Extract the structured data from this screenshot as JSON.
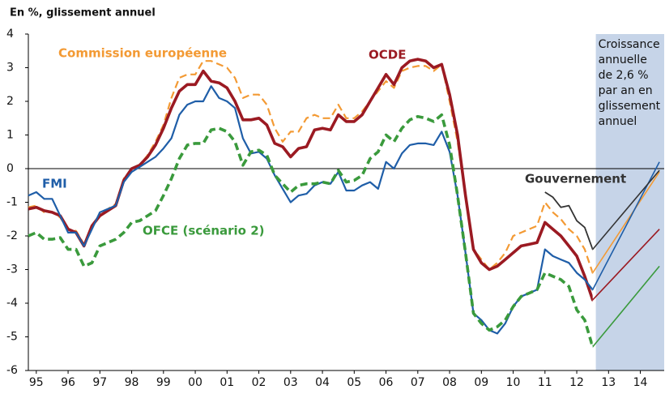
{
  "chart_data": {
    "type": "line",
    "ylabel": "En %, glissement annuel",
    "x": [
      1995.25,
      1995.5,
      1995.75,
      1996,
      1996.25,
      1996.5,
      1996.75,
      1997,
      1997.25,
      1997.5,
      1997.75,
      1998,
      1998.25,
      1998.5,
      1998.75,
      1999,
      1999.25,
      1999.5,
      1999.75,
      2000,
      2000.25,
      2000.5,
      2000.75,
      2001,
      2001.25,
      2001.5,
      2001.75,
      2002,
      2002.25,
      2002.5,
      2002.75,
      2003,
      2003.25,
      2003.5,
      2003.75,
      2004,
      2004.25,
      2004.5,
      2004.75,
      2005,
      2005.25,
      2005.5,
      2005.75,
      2006,
      2006.25,
      2006.5,
      2006.75,
      2007,
      2007.25,
      2007.5,
      2007.75,
      2008,
      2008.25,
      2008.5,
      2008.75,
      2009,
      2009.25,
      2009.5,
      2009.75,
      2010,
      2010.25,
      2010.5,
      2010.75,
      2011,
      2011.25,
      2011.5,
      2011.75,
      2012,
      2012.25,
      2012.5,
      2012.75,
      2013,
      2015.1
    ],
    "xlim": [
      1995.25,
      2015.25
    ],
    "xticks": [
      {
        "value": 1995.5,
        "label": "95"
      },
      {
        "value": 1996.5,
        "label": "96"
      },
      {
        "value": 1997.5,
        "label": "97"
      },
      {
        "value": 1998.5,
        "label": "98"
      },
      {
        "value": 1999.5,
        "label": "99"
      },
      {
        "value": 2000.5,
        "label": "00"
      },
      {
        "value": 2001.5,
        "label": "01"
      },
      {
        "value": 2002.5,
        "label": "02"
      },
      {
        "value": 2003.5,
        "label": "03"
      },
      {
        "value": 2004.5,
        "label": "04"
      },
      {
        "value": 2005.5,
        "label": "05"
      },
      {
        "value": 2006.5,
        "label": "06"
      },
      {
        "value": 2007.5,
        "label": "07"
      },
      {
        "value": 2008.5,
        "label": "08"
      },
      {
        "value": 2009.5,
        "label": "09"
      },
      {
        "value": 2010.5,
        "label": "10"
      },
      {
        "value": 2011.5,
        "label": "11"
      },
      {
        "value": 2012.5,
        "label": "12"
      },
      {
        "value": 2013.5,
        "label": "13"
      },
      {
        "value": 2014.5,
        "label": "14"
      }
    ],
    "ylim": [
      -6,
      4
    ],
    "yticks": [
      -6,
      -5,
      -4,
      -3,
      -2,
      -1,
      0,
      1,
      2,
      3,
      4
    ],
    "projection_band": [
      2013.1,
      2015.25
    ],
    "annotation": [
      "Croissance",
      "annuelle",
      "de 2,6 %",
      "par an en",
      "glissement",
      "annuel"
    ],
    "series": [
      {
        "name": "Commission européenne",
        "color": "#f39a34",
        "dashed": true,
        "width": 2.2,
        "values": [
          -1.15,
          -1.1,
          -1.3,
          -1.3,
          -1.45,
          -1.8,
          -1.85,
          -2.25,
          -1.7,
          -1.35,
          -1.2,
          -1.05,
          -0.3,
          0,
          0.1,
          0.4,
          0.8,
          1.3,
          2.1,
          2.7,
          2.8,
          2.8,
          3.2,
          3.2,
          3.1,
          3.0,
          2.7,
          2.1,
          2.2,
          2.2,
          1.9,
          1.2,
          0.8,
          1.1,
          1.1,
          1.5,
          1.6,
          1.5,
          1.5,
          1.9,
          1.5,
          1.5,
          1.7,
          2.0,
          2.3,
          2.6,
          2.4,
          2.9,
          3.0,
          3.05,
          3.05,
          2.9,
          3.1,
          2.0,
          0.8,
          -0.8,
          -2.4,
          -2.7,
          -3.0,
          -2.8,
          -2.5,
          -2.0,
          -1.9,
          -1.8,
          -1.7,
          -1.0,
          -1.3,
          -1.5,
          -1.8,
          -2.0,
          -2.4,
          -3.1,
          -0.1
        ]
      },
      {
        "name": "OCDE",
        "color": "#9b1a22",
        "dashed": false,
        "width": 3.6,
        "values": [
          -1.2,
          -1.15,
          -1.25,
          -1.3,
          -1.4,
          -1.8,
          -1.9,
          -2.3,
          -1.7,
          -1.4,
          -1.25,
          -1.1,
          -0.35,
          0,
          0.1,
          0.35,
          0.7,
          1.2,
          1.8,
          2.3,
          2.5,
          2.5,
          2.9,
          2.6,
          2.55,
          2.4,
          2.0,
          1.45,
          1.45,
          1.5,
          1.3,
          0.75,
          0.65,
          0.35,
          0.6,
          0.65,
          1.15,
          1.2,
          1.15,
          1.6,
          1.4,
          1.4,
          1.6,
          2.0,
          2.4,
          2.8,
          2.5,
          3.0,
          3.2,
          3.25,
          3.2,
          3.0,
          3.1,
          2.2,
          1.0,
          -0.8,
          -2.4,
          -2.8,
          -3.0,
          -2.9,
          -2.7,
          -2.5,
          -2.3,
          -2.25,
          -2.2,
          -1.6,
          -1.8,
          -2.0,
          -2.3,
          -2.6,
          -3.2,
          -3.9,
          -1.8
        ]
      },
      {
        "name": "FMI",
        "color": "#1f5ea8",
        "dashed": false,
        "width": 2.2,
        "values": [
          -0.8,
          -0.7,
          -0.9,
          -0.9,
          -1.4,
          -1.9,
          -1.9,
          -2.3,
          -1.8,
          -1.3,
          -1.2,
          -1.1,
          -0.4,
          -0.1,
          0.05,
          0.2,
          0.35,
          0.6,
          0.9,
          1.6,
          1.9,
          2.0,
          2.0,
          2.45,
          2.1,
          2.0,
          1.8,
          0.9,
          0.45,
          0.5,
          0.3,
          -0.2,
          -0.6,
          -1.0,
          -0.8,
          -0.75,
          -0.5,
          -0.4,
          -0.45,
          -0.1,
          -0.65,
          -0.65,
          -0.5,
          -0.4,
          -0.6,
          0.2,
          0,
          0.45,
          0.7,
          0.75,
          0.75,
          0.7,
          1.1,
          0.5,
          -0.8,
          -2.5,
          -4.3,
          -4.5,
          -4.8,
          -4.9,
          -4.6,
          -4.1,
          -3.8,
          -3.7,
          -3.6,
          -2.4,
          -2.6,
          -2.7,
          -2.8,
          -3.1,
          -3.3,
          -3.6,
          0.2
        ]
      },
      {
        "name": "OFCE (scénario 2)",
        "color": "#3a9a3c",
        "dashed": true,
        "width": 3.6,
        "values": [
          -2.0,
          -1.9,
          -2.1,
          -2.1,
          -2.05,
          -2.4,
          -2.4,
          -2.9,
          -2.8,
          -2.3,
          -2.2,
          -2.1,
          -1.9,
          -1.6,
          -1.55,
          -1.4,
          -1.25,
          -0.8,
          -0.3,
          0.3,
          0.7,
          0.75,
          0.75,
          1.15,
          1.2,
          1.1,
          0.8,
          0.1,
          0.5,
          0.55,
          0.4,
          -0.2,
          -0.45,
          -0.7,
          -0.5,
          -0.45,
          -0.45,
          -0.4,
          -0.45,
          -0.05,
          -0.4,
          -0.35,
          -0.2,
          0.3,
          0.5,
          1.0,
          0.8,
          1.2,
          1.45,
          1.55,
          1.5,
          1.4,
          1.6,
          0.7,
          -0.8,
          -2.5,
          -4.3,
          -4.6,
          -4.8,
          -4.7,
          -4.5,
          -4.1,
          -3.8,
          -3.7,
          -3.6,
          -3.1,
          -3.2,
          -3.3,
          -3.5,
          -4.2,
          -4.5,
          -5.3,
          -2.9
        ]
      },
      {
        "name": "Gouvernement",
        "color": "#333333",
        "dashed": false,
        "width": 1.8,
        "values": [
          null,
          null,
          null,
          null,
          null,
          null,
          null,
          null,
          null,
          null,
          null,
          null,
          null,
          null,
          null,
          null,
          null,
          null,
          null,
          null,
          null,
          null,
          null,
          null,
          null,
          null,
          null,
          null,
          null,
          null,
          null,
          null,
          null,
          null,
          null,
          null,
          null,
          null,
          null,
          null,
          null,
          null,
          null,
          null,
          null,
          null,
          null,
          null,
          null,
          null,
          null,
          null,
          null,
          null,
          null,
          null,
          null,
          null,
          null,
          null,
          null,
          null,
          null,
          null,
          null,
          -0.7,
          -0.85,
          -1.15,
          -1.1,
          -1.55,
          -1.75,
          -2.4,
          -0.05
        ]
      }
    ]
  }
}
